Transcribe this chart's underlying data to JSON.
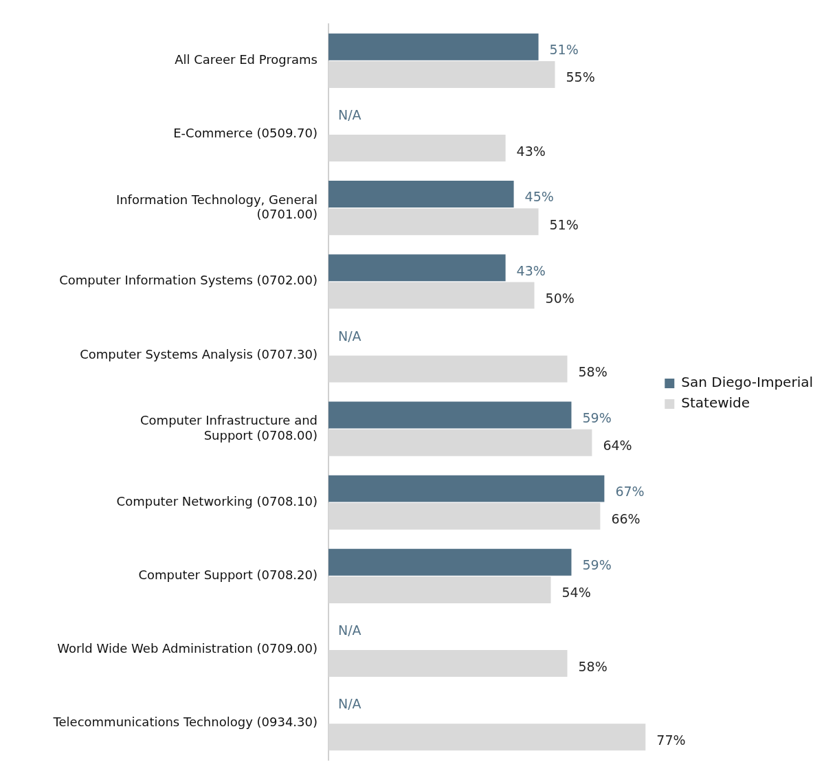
{
  "chart_data": {
    "type": "bar",
    "orientation": "horizontal",
    "categories": [
      "All Career Ed Programs",
      "E-Commerce (0509.70)",
      "Information Technology, General (0701.00)",
      "Computer Information Systems (0702.00)",
      "Computer Systems Analysis (0707.30)",
      "Computer Infrastructure and Support (0708.00)",
      "Computer Networking (0708.10)",
      "Computer Support (0708.20)",
      "World Wide Web Administration (0709.00)",
      "Telecommunications Technology (0934.30)"
    ],
    "series": [
      {
        "name": "San Diego-Imperial",
        "color": "#527186",
        "values": [
          51,
          null,
          45,
          43,
          null,
          59,
          67,
          59,
          null,
          null
        ],
        "value_labels": [
          "51%",
          "N/A",
          "45%",
          "43%",
          "N/A",
          "59%",
          "67%",
          "59%",
          "N/A",
          "N/A"
        ]
      },
      {
        "name": "Statewide",
        "color": "#d9d9d9",
        "values": [
          55,
          43,
          51,
          50,
          58,
          64,
          66,
          54,
          58,
          77
        ],
        "value_labels": [
          "55%",
          "43%",
          "51%",
          "50%",
          "58%",
          "64%",
          "66%",
          "54%",
          "58%",
          "77%"
        ]
      }
    ],
    "legend": "right",
    "grid": false
  }
}
